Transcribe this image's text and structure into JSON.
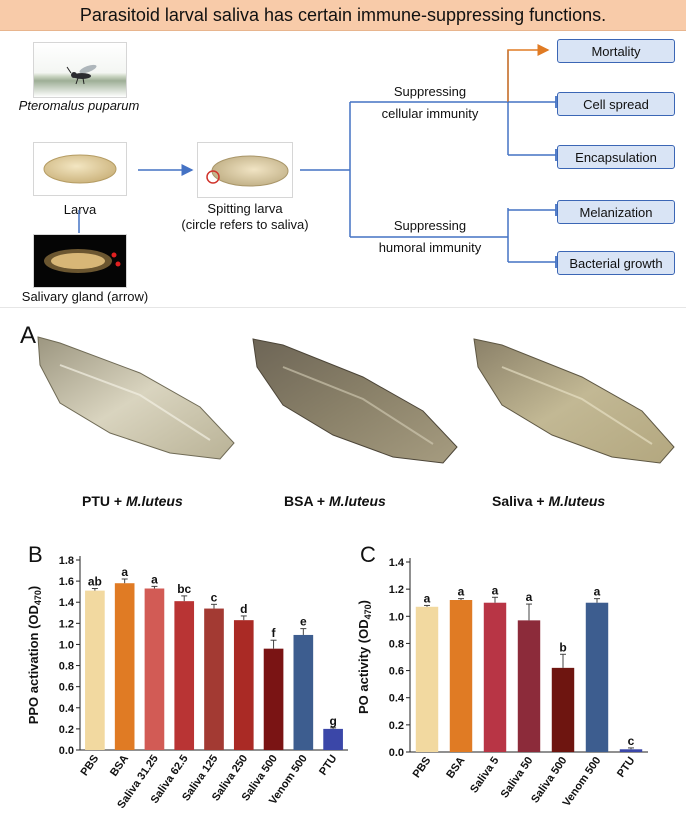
{
  "banner": {
    "title": "Parasitoid larval saliva has certain immune-suppressing  functions."
  },
  "schematic": {
    "wasp_label": "Pteromalus puparum",
    "larva_label": "Larva",
    "gland_label": "Salivary gland (arrow)",
    "spitting_label_1": "Spitting larva",
    "spitting_label_2": "(circle refers to saliva)",
    "cellular_label_1": "Suppressing",
    "cellular_label_2": "cellular immunity",
    "humoral_label_1": "Suppressing",
    "humoral_label_2": "humoral immunity",
    "outcomes": [
      "Mortality",
      "Cell spread",
      "Encapsulation",
      "Melanization",
      "Bacterial growth"
    ],
    "colors": {
      "arrow_blue": "#4472c4",
      "arrow_orange": "#e07b24",
      "box_fill": "#d9e4f5",
      "banner": "#f8cba9"
    }
  },
  "panel_a": {
    "letter": "A",
    "captions": [
      {
        "prefix": "PTU + ",
        "species": "M.luteus"
      },
      {
        "prefix": "BSA + ",
        "species": "M.luteus"
      },
      {
        "prefix": "Saliva + ",
        "species": "M.luteus"
      }
    ]
  },
  "chart_data": [
    {
      "panel": "B",
      "type": "bar",
      "ylabel": "PPO activation (OD470)",
      "ylim": [
        0,
        1.8
      ],
      "yticks": [
        "0.0",
        "0.2",
        "0.4",
        "0.6",
        "0.8",
        "1.0",
        "1.2",
        "1.4",
        "1.6",
        "1.8"
      ],
      "categories": [
        "PBS",
        "BSA",
        "Saliva 31.25",
        "Saliva 62.5",
        "Saliva 125",
        "Saliva 250",
        "Saliva 500",
        "Venom 500",
        "PTU"
      ],
      "values": [
        1.51,
        1.58,
        1.53,
        1.41,
        1.34,
        1.23,
        0.96,
        1.09,
        0.2
      ],
      "errors": [
        0.02,
        0.04,
        0.02,
        0.05,
        0.04,
        0.04,
        0.08,
        0.06,
        0.01
      ],
      "letters": [
        "ab",
        "a",
        "a",
        "bc",
        "c",
        "d",
        "f",
        "e",
        "g"
      ],
      "colors": [
        "#f2d9a0",
        "#e07b24",
        "#d25b55",
        "#b93434",
        "#a33a33",
        "#aa2a25",
        "#7a1414",
        "#3d5d8f",
        "#3b47a8"
      ]
    },
    {
      "panel": "C",
      "type": "bar",
      "ylabel": "PO activity (OD470)",
      "ylim": [
        0,
        1.4
      ],
      "yticks": [
        "0.0",
        "0.2",
        "0.4",
        "0.6",
        "0.8",
        "1.0",
        "1.2",
        "1.4"
      ],
      "categories": [
        "PBS",
        "BSA",
        "Saliva 5",
        "Saliva 50",
        "Saliva 500",
        "Venom 500",
        "PTU"
      ],
      "values": [
        1.07,
        1.12,
        1.1,
        0.97,
        0.62,
        1.1,
        0.02
      ],
      "errors": [
        0.01,
        0.01,
        0.04,
        0.12,
        0.1,
        0.03,
        0.01
      ],
      "letters": [
        "a",
        "a",
        "a",
        "a",
        "b",
        "a",
        "c"
      ],
      "colors": [
        "#f2d9a0",
        "#e07b24",
        "#b83545",
        "#8c2b3a",
        "#6e1510",
        "#3d5d8f",
        "#3b47a8"
      ]
    }
  ]
}
